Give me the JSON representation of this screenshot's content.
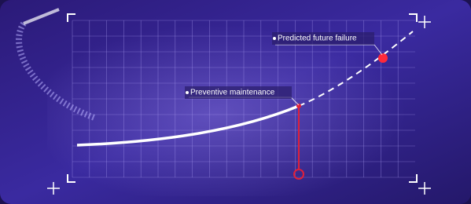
{
  "annotations": {
    "predicted": "Predicted future failure",
    "preventive": "Preventive maintenance"
  }
}
